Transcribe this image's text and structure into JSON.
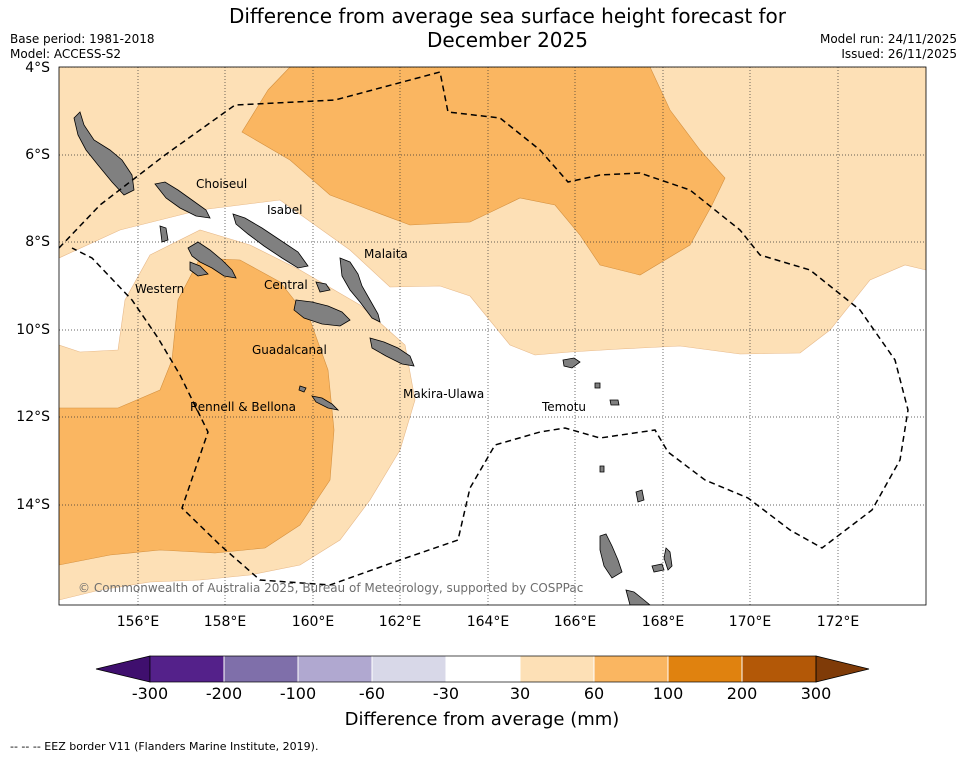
{
  "title_line1": "Difference from average sea surface height forecast for",
  "title_line2": "December 2025",
  "meta_left": {
    "base_period": "Base period: 1981-2018",
    "model": "Model: ACCESS-S2"
  },
  "meta_right": {
    "model_run": "Model run: 24/11/2025",
    "issued": "Issued: 26/11/2025"
  },
  "lat_labels": [
    "4°S",
    "6°S",
    "8°S",
    "10°S",
    "12°S",
    "14°S"
  ],
  "lon_labels": [
    "156°E",
    "158°E",
    "160°E",
    "162°E",
    "164°E",
    "166°E",
    "168°E",
    "170°E",
    "172°E"
  ],
  "regions": {
    "choiseul": "Choiseul",
    "isabel": "Isabel",
    "malaita": "Malaita",
    "western": "Western",
    "central": "Central",
    "guadalcanal": "Guadalcanal",
    "rennell": "Rennell & Bellona",
    "makira": "Makira-Ulawa",
    "temotu": "Temotu"
  },
  "copyright": "© Commonwealth of Australia 2025, Bureau of Meteorology, supported by COSPPac",
  "colorbar": {
    "labels": [
      "-300",
      "-200",
      "-100",
      "-60",
      "-30",
      "30",
      "60",
      "100",
      "200",
      "300"
    ],
    "colors": [
      "#3f0f6e",
      "#54218a",
      "#7f6faa",
      "#b0a8d0",
      "#d8d8e8",
      "#ffffff",
      "#fde0b6",
      "#fab661",
      "#e0820f",
      "#b35807",
      "#7f3b08"
    ],
    "title": "Difference from average (mm)"
  },
  "eez_note": "--  --  -- EEZ border V11 (Flanders Marine Institute, 2019)."
}
